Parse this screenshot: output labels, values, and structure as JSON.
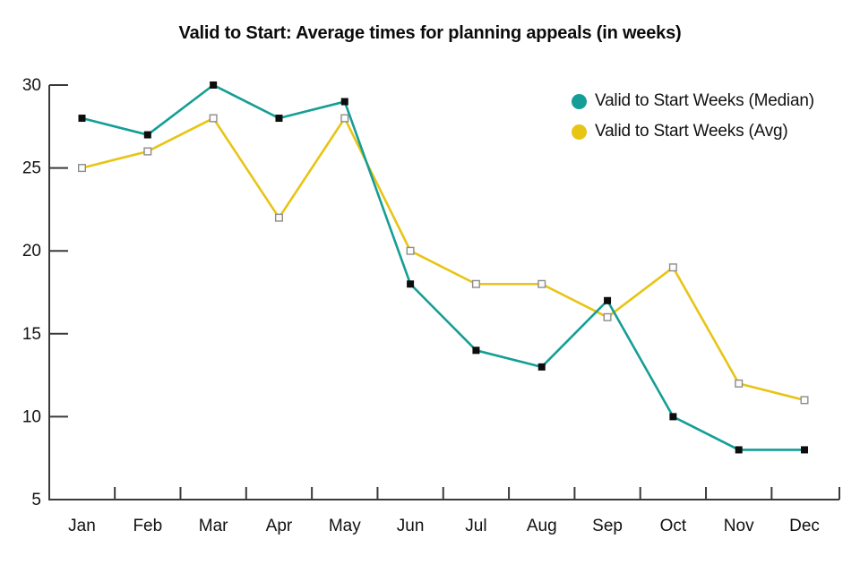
{
  "chart_data": {
    "type": "line",
    "title": "Valid to Start: Average times for planning appeals (in weeks)",
    "categories": [
      "Jan",
      "Feb",
      "Mar",
      "Apr",
      "May",
      "Jun",
      "Jul",
      "Aug",
      "Sep",
      "Oct",
      "Nov",
      "Dec"
    ],
    "series": [
      {
        "name": "Valid to Start Weeks (Median)",
        "color": "#149E96",
        "marker": "filled-square",
        "marker_color": "#0d0d0d",
        "values": [
          28,
          27,
          30,
          28,
          29,
          18,
          14,
          13,
          17,
          10,
          8,
          8
        ]
      },
      {
        "name": "Valid to Start Weeks (Avg)",
        "color": "#E8C414",
        "marker": "open-square",
        "marker_color": "#fcfcfc",
        "marker_stroke": "#8c8c8c",
        "values": [
          25,
          26,
          28,
          22,
          28,
          20,
          18,
          18,
          16,
          19,
          12,
          11
        ]
      }
    ],
    "xlabel": "",
    "ylabel": "",
    "ylim": [
      5,
      30
    ],
    "y_ticks": [
      30,
      25,
      20,
      15,
      10,
      5
    ],
    "grid": "off",
    "legend_position": "upper-right-inside",
    "axis_color": "#3a3a3a",
    "tick_label_color": "#111111",
    "tick_style": "inward"
  }
}
